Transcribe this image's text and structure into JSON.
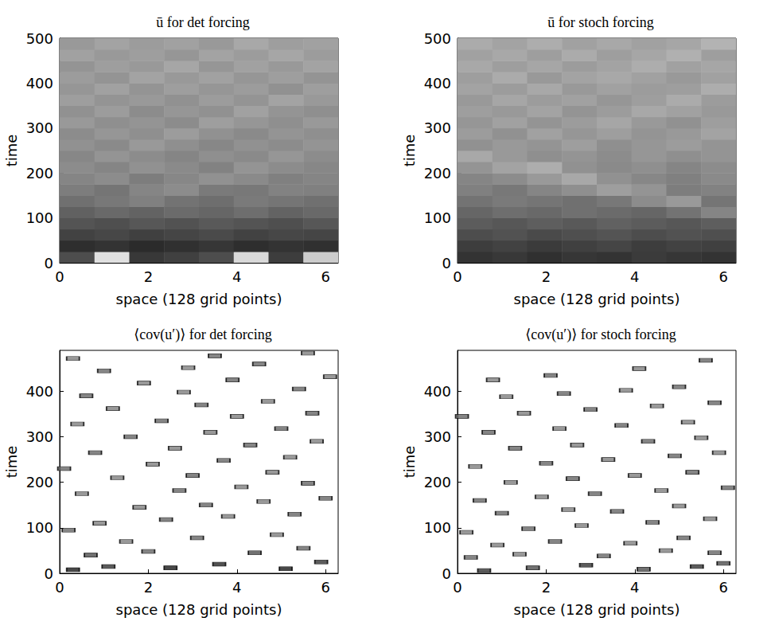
{
  "chart_data": [
    {
      "type": "heatmap",
      "title": "ū for det forcing",
      "x_label": "space (128 grid points)",
      "y_label": "time",
      "xlim": [
        0,
        6.2832
      ],
      "xticks": [
        0,
        2,
        4,
        6
      ],
      "ylim": [
        0,
        500
      ],
      "yticks": [
        0,
        100,
        200,
        300,
        400,
        500
      ],
      "x_edges": [
        0,
        0.7854,
        1.5708,
        2.3562,
        3.1416,
        3.927,
        4.7124,
        5.4978,
        6.2832
      ],
      "t_edges": [
        0,
        25,
        50,
        75,
        100,
        125,
        150,
        175,
        200,
        225,
        250,
        275,
        300,
        325,
        350,
        375,
        400,
        425,
        450,
        475,
        500
      ],
      "cell_range": [
        0,
        1
      ],
      "cells": [
        [
          0.3,
          0.88,
          0.22,
          0.25,
          0.3,
          0.85,
          0.24,
          0.8
        ],
        [
          0.18,
          0.2,
          0.17,
          0.19,
          0.21,
          0.18,
          0.2,
          0.19
        ],
        [
          0.26,
          0.28,
          0.25,
          0.27,
          0.29,
          0.26,
          0.28,
          0.27
        ],
        [
          0.33,
          0.31,
          0.34,
          0.32,
          0.35,
          0.33,
          0.31,
          0.34
        ],
        [
          0.38,
          0.41,
          0.39,
          0.42,
          0.4,
          0.43,
          0.39,
          0.41
        ],
        [
          0.44,
          0.47,
          0.5,
          0.45,
          0.43,
          0.48,
          0.46,
          0.44
        ],
        [
          0.49,
          0.46,
          0.52,
          0.55,
          0.48,
          0.47,
          0.51,
          0.5
        ],
        [
          0.52,
          0.55,
          0.49,
          0.53,
          0.57,
          0.54,
          0.5,
          0.52
        ],
        [
          0.55,
          0.52,
          0.57,
          0.54,
          0.51,
          0.58,
          0.55,
          0.53
        ],
        [
          0.53,
          0.58,
          0.55,
          0.52,
          0.56,
          0.54,
          0.59,
          0.55
        ],
        [
          0.57,
          0.54,
          0.6,
          0.56,
          0.53,
          0.57,
          0.55,
          0.58
        ],
        [
          0.55,
          0.59,
          0.56,
          0.61,
          0.57,
          0.54,
          0.58,
          0.56
        ],
        [
          0.6,
          0.56,
          0.58,
          0.55,
          0.62,
          0.59,
          0.56,
          0.6
        ],
        [
          0.57,
          0.61,
          0.55,
          0.59,
          0.57,
          0.63,
          0.58,
          0.56
        ],
        [
          0.62,
          0.58,
          0.6,
          0.57,
          0.61,
          0.58,
          0.64,
          0.6
        ],
        [
          0.59,
          0.63,
          0.58,
          0.62,
          0.59,
          0.61,
          0.57,
          0.62
        ],
        [
          0.61,
          0.58,
          0.64,
          0.6,
          0.63,
          0.59,
          0.62,
          0.58
        ],
        [
          0.58,
          0.62,
          0.6,
          0.65,
          0.59,
          0.63,
          0.6,
          0.64
        ],
        [
          0.63,
          0.6,
          0.62,
          0.59,
          0.64,
          0.61,
          0.65,
          0.61
        ],
        [
          0.6,
          0.64,
          0.61,
          0.63,
          0.6,
          0.66,
          0.62,
          0.63
        ]
      ]
    },
    {
      "type": "heatmap",
      "title": "ū for stoch forcing",
      "x_label": "space (128 grid points)",
      "y_label": "time",
      "xlim": [
        0,
        6.2832
      ],
      "xticks": [
        0,
        2,
        4,
        6
      ],
      "ylim": [
        0,
        500
      ],
      "yticks": [
        0,
        100,
        200,
        300,
        400,
        500
      ],
      "x_edges": [
        0,
        0.7854,
        1.5708,
        2.3562,
        3.1416,
        3.927,
        4.7124,
        5.4978,
        6.2832
      ],
      "t_edges": [
        0,
        25,
        50,
        75,
        100,
        125,
        150,
        175,
        200,
        225,
        250,
        275,
        300,
        325,
        350,
        375,
        400,
        425,
        450,
        475,
        500
      ],
      "cell_range": [
        0,
        1
      ],
      "cells": [
        [
          0.2,
          0.22,
          0.19,
          0.21,
          0.2,
          0.23,
          0.21,
          0.2
        ],
        [
          0.24,
          0.26,
          0.23,
          0.25,
          0.27,
          0.24,
          0.26,
          0.25
        ],
        [
          0.3,
          0.32,
          0.29,
          0.31,
          0.33,
          0.3,
          0.32,
          0.31
        ],
        [
          0.36,
          0.34,
          0.37,
          0.35,
          0.38,
          0.36,
          0.34,
          0.37
        ],
        [
          0.4,
          0.43,
          0.41,
          0.44,
          0.42,
          0.4,
          0.45,
          0.52
        ],
        [
          0.45,
          0.48,
          0.46,
          0.44,
          0.47,
          0.55,
          0.6,
          0.46
        ],
        [
          0.5,
          0.47,
          0.52,
          0.56,
          0.62,
          0.58,
          0.49,
          0.51
        ],
        [
          0.52,
          0.55,
          0.6,
          0.66,
          0.57,
          0.53,
          0.5,
          0.54
        ],
        [
          0.58,
          0.64,
          0.68,
          0.57,
          0.54,
          0.56,
          0.52,
          0.55
        ],
        [
          0.66,
          0.6,
          0.56,
          0.58,
          0.55,
          0.59,
          0.56,
          0.58
        ],
        [
          0.57,
          0.6,
          0.58,
          0.62,
          0.56,
          0.59,
          0.61,
          0.58
        ],
        [
          0.61,
          0.57,
          0.63,
          0.59,
          0.62,
          0.58,
          0.6,
          0.64
        ],
        [
          0.59,
          0.63,
          0.58,
          0.61,
          0.65,
          0.6,
          0.57,
          0.62
        ],
        [
          0.62,
          0.6,
          0.64,
          0.58,
          0.61,
          0.66,
          0.63,
          0.6
        ],
        [
          0.6,
          0.65,
          0.61,
          0.63,
          0.59,
          0.62,
          0.67,
          0.61
        ],
        [
          0.64,
          0.61,
          0.66,
          0.6,
          0.63,
          0.61,
          0.62,
          0.68
        ],
        [
          0.62,
          0.67,
          0.6,
          0.64,
          0.66,
          0.63,
          0.6,
          0.63
        ],
        [
          0.66,
          0.62,
          0.65,
          0.61,
          0.64,
          0.68,
          0.63,
          0.65
        ],
        [
          0.63,
          0.66,
          0.62,
          0.67,
          0.62,
          0.65,
          0.69,
          0.62
        ],
        [
          0.67,
          0.64,
          0.68,
          0.63,
          0.66,
          0.63,
          0.65,
          0.7
        ]
      ]
    },
    {
      "type": "scatter",
      "title": "⟨cov(u′)⟩ for det forcing",
      "x_label": "space (128 grid points)",
      "y_label": "time",
      "xlim": [
        0,
        6.2832
      ],
      "xticks": [
        0,
        2,
        4,
        6
      ],
      "ylim": [
        0,
        490
      ],
      "yticks": [
        0,
        100,
        200,
        300,
        400
      ],
      "marker": "rect",
      "cell_range": [
        0,
        1
      ],
      "x": [
        0.3,
        1.1,
        2.5,
        3.6,
        5.1,
        5.9,
        0.7,
        2.0,
        4.4,
        5.5,
        1.5,
        3.1,
        4.9,
        0.2,
        0.9,
        2.4,
        3.8,
        5.3,
        1.8,
        3.3,
        4.6,
        6.0,
        0.5,
        2.7,
        4.1,
        5.6,
        1.3,
        3.0,
        4.8,
        0.1,
        2.1,
        3.7,
        5.2,
        0.8,
        2.6,
        4.3,
        5.8,
        1.6,
        3.4,
        5.0,
        0.4,
        2.3,
        4.0,
        5.7,
        1.2,
        3.2,
        4.7,
        0.6,
        2.8,
        5.4,
        1.9,
        3.9,
        6.1,
        1.0,
        2.9,
        4.5,
        0.3,
        3.5,
        5.6
      ],
      "y": [
        8,
        15,
        12,
        20,
        10,
        25,
        40,
        48,
        45,
        55,
        70,
        78,
        85,
        95,
        110,
        118,
        125,
        130,
        145,
        150,
        158,
        165,
        175,
        182,
        190,
        198,
        210,
        215,
        222,
        230,
        240,
        248,
        255,
        265,
        275,
        282,
        290,
        300,
        310,
        318,
        328,
        335,
        345,
        352,
        362,
        370,
        378,
        390,
        398,
        405,
        418,
        425,
        432,
        445,
        452,
        460,
        472,
        478,
        484
      ],
      "values": [
        0.1,
        0.2,
        0.1,
        0.15,
        0.1,
        0.2,
        0.3,
        0.4,
        0.3,
        0.4,
        0.5,
        0.4,
        0.5,
        0.4,
        0.5,
        0.4,
        0.5,
        0.4,
        0.5,
        0.4,
        0.5,
        0.4,
        0.5,
        0.4,
        0.5,
        0.4,
        0.5,
        0.4,
        0.5,
        0.4,
        0.5,
        0.4,
        0.5,
        0.4,
        0.5,
        0.4,
        0.5,
        0.4,
        0.5,
        0.4,
        0.5,
        0.4,
        0.5,
        0.4,
        0.5,
        0.4,
        0.5,
        0.4,
        0.5,
        0.4,
        0.5,
        0.4,
        0.5,
        0.4,
        0.5,
        0.4,
        0.5,
        0.4,
        0.5
      ]
    },
    {
      "type": "scatter",
      "title": "⟨cov(u′)⟩ for stoch forcing",
      "x_label": "space (128 grid points)",
      "y_label": "time",
      "xlim": [
        0,
        6.2832
      ],
      "xticks": [
        0,
        2,
        4,
        6
      ],
      "ylim": [
        0,
        490
      ],
      "yticks": [
        0,
        100,
        200,
        300,
        400
      ],
      "marker": "rect",
      "cell_range": [
        0,
        1
      ],
      "x": [
        0.6,
        1.7,
        2.9,
        4.2,
        5.4,
        6.0,
        0.3,
        1.4,
        3.3,
        4.7,
        5.8,
        0.9,
        2.2,
        3.9,
        5.1,
        0.2,
        1.6,
        2.8,
        4.4,
        5.7,
        1.0,
        2.5,
        3.6,
        5.0,
        0.5,
        1.9,
        3.1,
        4.6,
        6.1,
        1.2,
        2.6,
        4.0,
        5.3,
        0.4,
        2.0,
        3.4,
        4.9,
        5.9,
        1.3,
        2.7,
        4.3,
        5.5,
        0.7,
        2.3,
        3.7,
        5.2,
        0.1,
        1.5,
        3.0,
        4.5,
        5.8,
        1.1,
        2.4,
        3.8,
        5.0,
        0.8,
        2.1,
        4.1,
        5.6
      ],
      "y": [
        6,
        12,
        18,
        9,
        15,
        22,
        35,
        42,
        38,
        50,
        45,
        62,
        70,
        66,
        78,
        90,
        98,
        105,
        112,
        120,
        132,
        140,
        136,
        148,
        160,
        168,
        175,
        182,
        188,
        200,
        208,
        215,
        222,
        235,
        242,
        250,
        258,
        265,
        275,
        282,
        290,
        298,
        310,
        318,
        325,
        332,
        345,
        352,
        360,
        368,
        375,
        388,
        395,
        402,
        410,
        425,
        435,
        450,
        468
      ],
      "values": [
        0.2,
        0.3,
        0.2,
        0.3,
        0.2,
        0.3,
        0.4,
        0.5,
        0.4,
        0.5,
        0.4,
        0.5,
        0.4,
        0.5,
        0.4,
        0.5,
        0.4,
        0.5,
        0.4,
        0.5,
        0.4,
        0.5,
        0.4,
        0.5,
        0.4,
        0.5,
        0.4,
        0.5,
        0.4,
        0.5,
        0.4,
        0.5,
        0.4,
        0.5,
        0.4,
        0.5,
        0.4,
        0.5,
        0.4,
        0.5,
        0.4,
        0.5,
        0.4,
        0.5,
        0.4,
        0.5,
        0.4,
        0.5,
        0.4,
        0.5,
        0.4,
        0.5,
        0.4,
        0.5,
        0.4,
        0.5,
        0.4,
        0.5,
        0.4
      ]
    }
  ]
}
